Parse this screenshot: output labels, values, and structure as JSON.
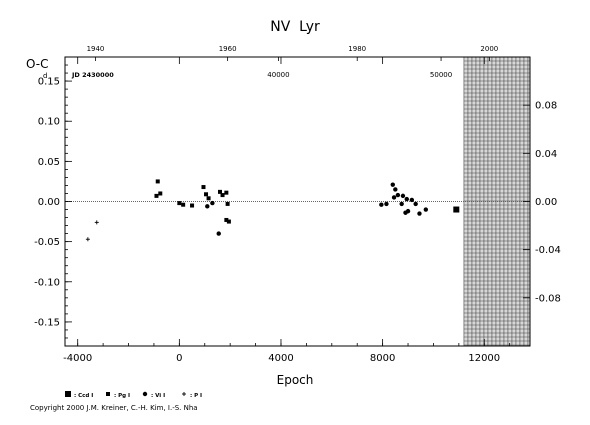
{
  "chart_data": {
    "type": "scatter",
    "title": "NV  Lyr",
    "ylabel": "O-C",
    "ylabel_sup": "d",
    "xlabel": "Epoch",
    "jd_label": "JD 2430000",
    "xlim": [
      -4500,
      13800
    ],
    "ylim": [
      -0.18,
      0.18
    ],
    "x_ticks": [
      {
        "v": -4000,
        "label": "-4000"
      },
      {
        "v": 0,
        "label": "0"
      },
      {
        "v": 4000,
        "label": "4000"
      },
      {
        "v": 8000,
        "label": "8000"
      },
      {
        "v": 12000,
        "label": "12000"
      }
    ],
    "y_ticks": [
      {
        "v": 0.15,
        "label": "0.15"
      },
      {
        "v": 0.1,
        "label": "0.10"
      },
      {
        "v": 0.05,
        "label": "0.05"
      },
      {
        "v": 0.0,
        "label": "0.00"
      },
      {
        "v": -0.05,
        "label": "-0.05"
      },
      {
        "v": -0.1,
        "label": "-0.10"
      },
      {
        "v": -0.15,
        "label": "-0.15"
      }
    ],
    "y2_ticks": [
      {
        "v": 0.08,
        "label": "0.08"
      },
      {
        "v": 0.04,
        "label": "0.04"
      },
      {
        "v": 0.0,
        "label": "0.00"
      },
      {
        "v": -0.04,
        "label": "-0.04"
      },
      {
        "v": -0.08,
        "label": "-0.08"
      }
    ],
    "year_ticks": [
      {
        "epoch": -3300,
        "label": "1940"
      },
      {
        "epoch": 1900,
        "label": "1960"
      },
      {
        "epoch": 7000,
        "label": "1980"
      },
      {
        "epoch": 12200,
        "label": "2000"
      }
    ],
    "jd_ticks": [
      {
        "epoch": 3900,
        "label": "40000"
      },
      {
        "epoch": 10300,
        "label": "50000"
      }
    ],
    "shaded_region": {
      "x_from": 11200,
      "x_to": 13800
    },
    "legend": [
      {
        "marker": "big-square",
        "label": ": Ccd I"
      },
      {
        "marker": "square",
        "label": ": Pg I"
      },
      {
        "marker": "dot",
        "label": ": Vi I"
      },
      {
        "marker": "plus",
        "label": ": P I"
      }
    ],
    "series": [
      {
        "name": "Ccd I",
        "marker": "big-square",
        "points": [
          {
            "x": 10900,
            "y": -0.01
          }
        ]
      },
      {
        "name": "Pg I",
        "marker": "square",
        "points": [
          {
            "x": -850,
            "y": 0.025
          },
          {
            "x": -900,
            "y": 0.007
          },
          {
            "x": -750,
            "y": 0.01
          },
          {
            "x": 0,
            "y": -0.002
          },
          {
            "x": 150,
            "y": -0.004
          },
          {
            "x": 500,
            "y": -0.005
          },
          {
            "x": 950,
            "y": 0.018
          },
          {
            "x": 1050,
            "y": 0.009
          },
          {
            "x": 1150,
            "y": 0.004
          },
          {
            "x": 1600,
            "y": 0.012
          },
          {
            "x": 1700,
            "y": 0.008
          },
          {
            "x": 1850,
            "y": 0.011
          },
          {
            "x": 1900,
            "y": -0.003
          },
          {
            "x": 1850,
            "y": -0.023
          },
          {
            "x": 1950,
            "y": -0.025
          }
        ]
      },
      {
        "name": "Vi I",
        "marker": "dot",
        "points": [
          {
            "x": 1100,
            "y": -0.006
          },
          {
            "x": 1300,
            "y": -0.002
          },
          {
            "x": 1550,
            "y": -0.04
          },
          {
            "x": 7950,
            "y": -0.004
          },
          {
            "x": 8150,
            "y": -0.003
          },
          {
            "x": 8400,
            "y": 0.021
          },
          {
            "x": 8450,
            "y": 0.005
          },
          {
            "x": 8500,
            "y": 0.015
          },
          {
            "x": 8600,
            "y": 0.008
          },
          {
            "x": 8750,
            "y": -0.003
          },
          {
            "x": 8800,
            "y": 0.007
          },
          {
            "x": 8900,
            "y": -0.014
          },
          {
            "x": 8950,
            "y": 0.003
          },
          {
            "x": 9000,
            "y": -0.012
          },
          {
            "x": 9150,
            "y": 0.002
          },
          {
            "x": 9300,
            "y": -0.003
          },
          {
            "x": 9450,
            "y": -0.015
          },
          {
            "x": 9700,
            "y": -0.01
          }
        ]
      },
      {
        "name": "P I",
        "marker": "plus",
        "points": [
          {
            "x": -3600,
            "y": -0.047
          },
          {
            "x": -3250,
            "y": -0.026
          }
        ]
      }
    ]
  },
  "copyright": "Copyright 2000 J.M. Kreiner, C.-H. Kim, I.-S. Nha"
}
